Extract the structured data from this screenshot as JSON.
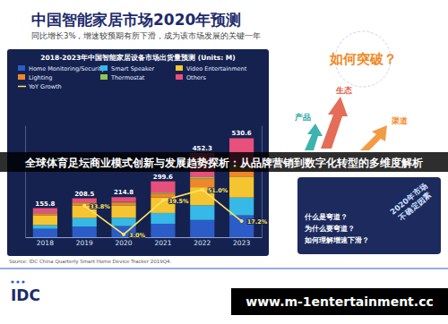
{
  "slide": {
    "title": "中国智能家居市场2020年预测",
    "subtitle": "同比增长3%，增速较预期有所下滑，成为该市场发展的关键一年",
    "banner": "全球体育足坛商业模式创新与发展趋势探析：从品牌营销到数字化转型的多维度解析",
    "source": "Source: IDC China Quarterly Smart Home Device Tracker 2019Q4.",
    "logo": "IDC",
    "watermark": "www.m-1entertainment.cc"
  },
  "diagram": {
    "title": "如何突破？",
    "nodes": [
      "生态",
      "产品",
      "渠道"
    ],
    "questions": [
      "什么是弯道？",
      "为什么要弯道？",
      "如何理解增速下滑？"
    ],
    "tag": [
      "2020年市场",
      "不确定因素"
    ]
  },
  "chart_data": {
    "type": "bar",
    "title": "2018-2023年中国智能家居设备市场出货量预测 (Units: M)",
    "categories": [
      "2018",
      "2019",
      "2020",
      "2021",
      "2022",
      "2023"
    ],
    "stacked": true,
    "legend": "top",
    "tick_labels": "x",
    "ylim": [
      0,
      600
    ],
    "y2lim": [
      0,
      120
    ],
    "totals": [
      155.8,
      208.5,
      214.8,
      299.6,
      452.3,
      530.6
    ],
    "series": [
      {
        "name": "Home Monitoring/Security",
        "color": "#2b5cc8",
        "values": [
          45.2,
          56.9,
          59.6,
          72.1,
          92.3,
          117.2
        ]
      },
      {
        "name": "Smart Speaker",
        "color": "#36b9e6",
        "values": [
          19.7,
          45.9,
          44.8,
          57.9,
          78.9,
          95.4
        ]
      },
      {
        "name": "Video Entertainment",
        "color": "#f4c531",
        "values": [
          52.9,
          67.4,
          66.3,
          82.7,
          97.1,
          112.3
        ]
      },
      {
        "name": "Lighting",
        "color": "#f0862a",
        "values": [
          8.6,
          12.1,
          14.2,
          21.4,
          45.2,
          52.2
        ]
      },
      {
        "name": "Thermostat",
        "color": "#8fc750",
        "values": [
          2.8,
          3.5,
          3.9,
          5.2,
          8.1,
          10.6
        ]
      },
      {
        "name": "Others",
        "color": "#e6507a",
        "values": [
          26.6,
          22.7,
          26.0,
          60.3,
          130.7,
          142.9
        ]
      },
      {
        "name": "YoY Growth",
        "type": "line",
        "axis": "y2",
        "color": "#ffe45c",
        "marker": "circle",
        "values": [
          null,
          33.8,
          3.0,
          39.5,
          51.0,
          17.2
        ],
        "value_labels": [
          null,
          "33.8%",
          "3.0%",
          "39.5%",
          "51.0%",
          "17.2%"
        ]
      }
    ]
  }
}
